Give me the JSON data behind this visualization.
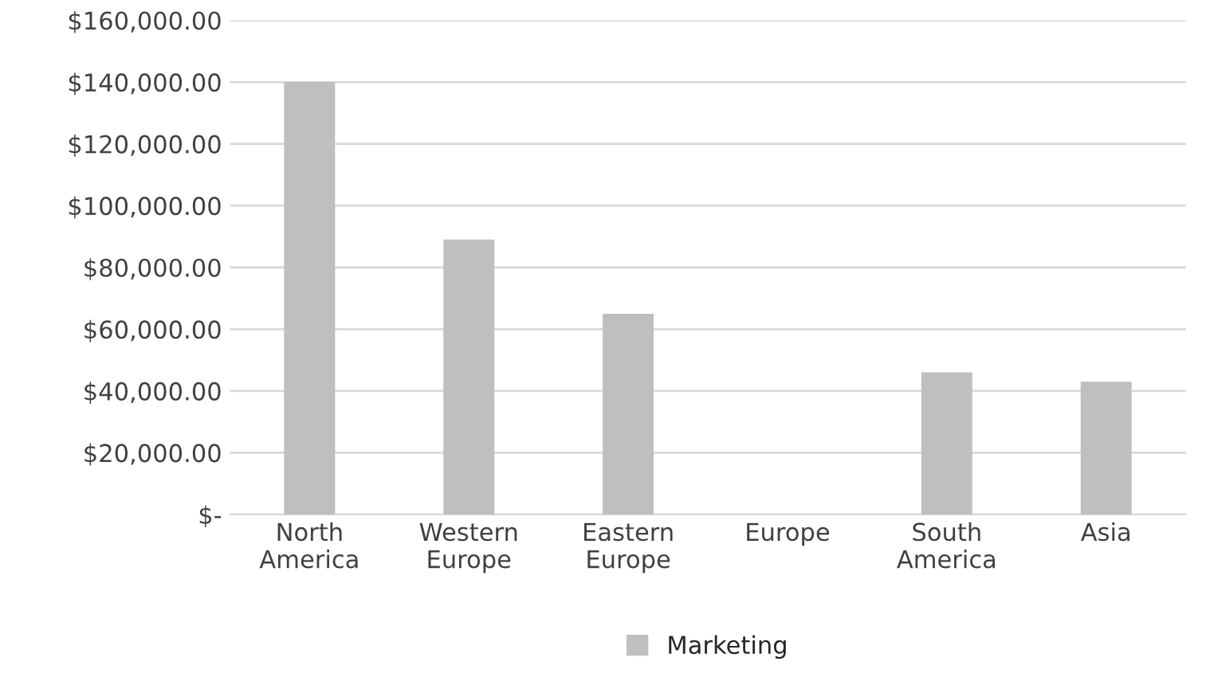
{
  "chart_data": {
    "type": "bar",
    "categories": [
      "North\nAmerica",
      "Western\nEurope",
      "Eastern\nEurope",
      "Europe",
      "South\nAmerica",
      "Asia"
    ],
    "series": [
      {
        "name": "Marketing",
        "color": "#bfbfbf",
        "values": [
          140000,
          89000,
          65000,
          null,
          46000,
          43000
        ]
      }
    ],
    "ylim": [
      0,
      160000
    ],
    "yticks": [
      {
        "value": 0,
        "label": "$-"
      },
      {
        "value": 20000,
        "label": "$20,000.00"
      },
      {
        "value": 40000,
        "label": "$40,000.00"
      },
      {
        "value": 60000,
        "label": "$60,000.00"
      },
      {
        "value": 80000,
        "label": "$80,000.00"
      },
      {
        "value": 100000,
        "label": "$100,000.00"
      },
      {
        "value": 120000,
        "label": "$120,000.00"
      },
      {
        "value": 140000,
        "label": "$140,000.00"
      },
      {
        "value": 160000,
        "label": "$160,000.00"
      }
    ],
    "grid": "y",
    "legend": "bottom"
  }
}
